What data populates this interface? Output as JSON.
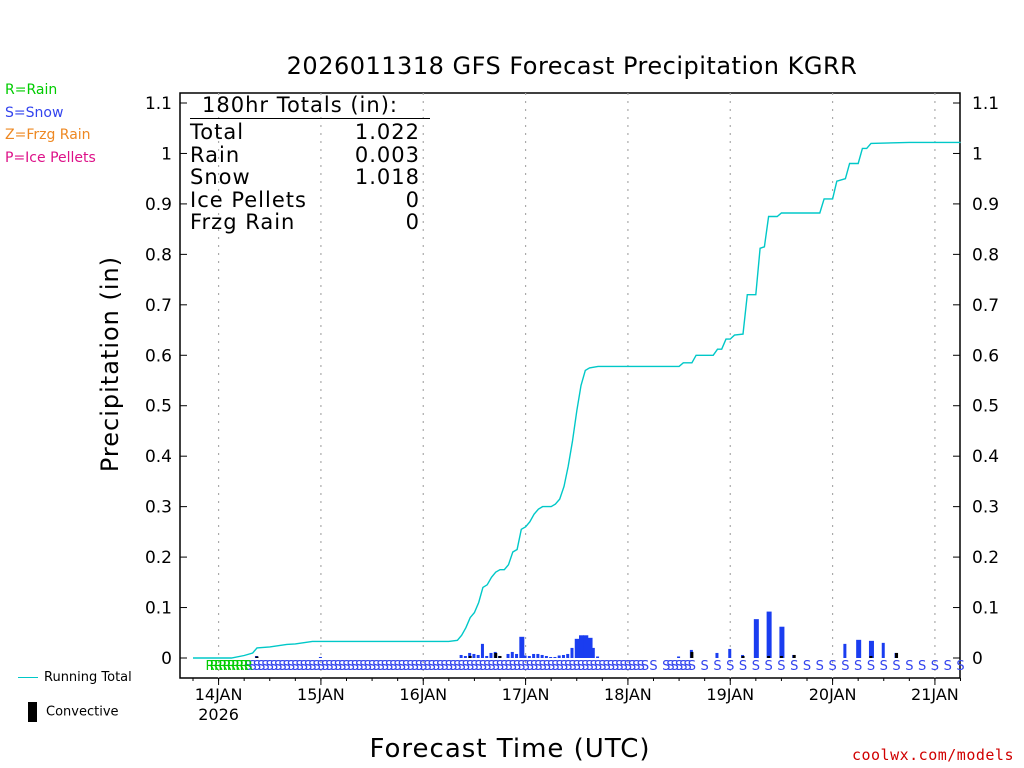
{
  "legend": {
    "rain": {
      "label": "R=Rain",
      "color": "#00cc00"
    },
    "snow": {
      "label": "S=Snow",
      "color": "#3344ee"
    },
    "frzg": {
      "label": "Z=Frzg Rain",
      "color": "#ee8822"
    },
    "ice": {
      "label": "P=Ice Pellets",
      "color": "#dd1188"
    }
  },
  "bottom_legend": {
    "running_total": "Running Total",
    "convective": "Convective"
  },
  "watermark": "coolwx.com/models",
  "totals": {
    "header": "180hr Totals (in):",
    "rows": [
      {
        "label": "Total",
        "value": "1.022"
      },
      {
        "label": "Rain",
        "value": "0.003"
      },
      {
        "label": "Snow",
        "value": "1.018"
      },
      {
        "label": "Ice Pellets",
        "value": "0"
      },
      {
        "label": "Frzg Rain",
        "value": "0"
      }
    ]
  },
  "colors": {
    "running_total": "#00c8c8",
    "bar": "#1a3df0",
    "convective": "#000000",
    "grid": "#aaaaaa"
  },
  "chart_data": {
    "type": "bar",
    "title": "2026011318 GFS Forecast Precipitation KGRR",
    "xlabel": "Forecast Time (UTC)",
    "ylabel": "Precipitation (in)",
    "ylim": [
      0,
      1.1
    ],
    "yticks": [
      "0",
      "0.1",
      "0.2",
      "0.3",
      "0.4",
      "0.5",
      "0.6",
      "0.7",
      "0.8",
      "0.9",
      "1",
      "1.1"
    ],
    "x_unit": "hours since 2026-01-13 18Z",
    "xlim": [
      0,
      180
    ],
    "xticks": [
      {
        "h": 6,
        "label": "14JAN"
      },
      {
        "h": 30,
        "label": "15JAN"
      },
      {
        "h": 54,
        "label": "16JAN"
      },
      {
        "h": 78,
        "label": "17JAN"
      },
      {
        "h": 102,
        "label": "18JAN"
      },
      {
        "h": 126,
        "label": "19JAN"
      },
      {
        "h": 150,
        "label": "20JAN"
      },
      {
        "h": 174,
        "label": "21JAN"
      }
    ],
    "xtick_sublabel": "2026",
    "running_total": [
      [
        0,
        0
      ],
      [
        9,
        0
      ],
      [
        12,
        0.005
      ],
      [
        14,
        0.01
      ],
      [
        15,
        0.02
      ],
      [
        18,
        0.022
      ],
      [
        22,
        0.027
      ],
      [
        24,
        0.028
      ],
      [
        28,
        0.033
      ],
      [
        30,
        0.033
      ],
      [
        60,
        0.033
      ],
      [
        62,
        0.035
      ],
      [
        63,
        0.045
      ],
      [
        64,
        0.06
      ],
      [
        65,
        0.08
      ],
      [
        66,
        0.09
      ],
      [
        67,
        0.11
      ],
      [
        68,
        0.14
      ],
      [
        69,
        0.145
      ],
      [
        70,
        0.16
      ],
      [
        71,
        0.17
      ],
      [
        72,
        0.175
      ],
      [
        73,
        0.175
      ],
      [
        74,
        0.185
      ],
      [
        75,
        0.21
      ],
      [
        76,
        0.215
      ],
      [
        77,
        0.255
      ],
      [
        78,
        0.26
      ],
      [
        79,
        0.27
      ],
      [
        80,
        0.285
      ],
      [
        81,
        0.295
      ],
      [
        82,
        0.3
      ],
      [
        84,
        0.3
      ],
      [
        85,
        0.305
      ],
      [
        86,
        0.315
      ],
      [
        87,
        0.34
      ],
      [
        88,
        0.38
      ],
      [
        89,
        0.43
      ],
      [
        90,
        0.49
      ],
      [
        91,
        0.54
      ],
      [
        92,
        0.57
      ],
      [
        93,
        0.575
      ],
      [
        95,
        0.578
      ],
      [
        114,
        0.578
      ],
      [
        115,
        0.585
      ],
      [
        117,
        0.585
      ],
      [
        118,
        0.6
      ],
      [
        120,
        0.6
      ],
      [
        122,
        0.6
      ],
      [
        123,
        0.612
      ],
      [
        124,
        0.612
      ],
      [
        125,
        0.632
      ],
      [
        126,
        0.632
      ],
      [
        127,
        0.64
      ],
      [
        129,
        0.642
      ],
      [
        130,
        0.72
      ],
      [
        132,
        0.72
      ],
      [
        133,
        0.812
      ],
      [
        134,
        0.815
      ],
      [
        135,
        0.875
      ],
      [
        137,
        0.875
      ],
      [
        138,
        0.882
      ],
      [
        147,
        0.882
      ],
      [
        148,
        0.91
      ],
      [
        150,
        0.91
      ],
      [
        151,
        0.945
      ],
      [
        153,
        0.95
      ],
      [
        154,
        0.98
      ],
      [
        156,
        0.98
      ],
      [
        157,
        1.01
      ],
      [
        158,
        1.01
      ],
      [
        159,
        1.02
      ],
      [
        168,
        1.022
      ],
      [
        180,
        1.022
      ]
    ],
    "precip_bars": [
      [
        15,
        0.004
      ],
      [
        30,
        0.002
      ],
      [
        63,
        0.006
      ],
      [
        64,
        0.004
      ],
      [
        65,
        0.01
      ],
      [
        66,
        0.008
      ],
      [
        67,
        0.006
      ],
      [
        68,
        0.028
      ],
      [
        69,
        0.004
      ],
      [
        70,
        0.01
      ],
      [
        71,
        0.012
      ],
      [
        72,
        0.004
      ],
      [
        74,
        0.008
      ],
      [
        75,
        0.012
      ],
      [
        76,
        0.008
      ],
      [
        77,
        0.042
      ],
      [
        78,
        0.005
      ],
      [
        79,
        0.004
      ],
      [
        80,
        0.008
      ],
      [
        81,
        0.008
      ],
      [
        82,
        0.006
      ],
      [
        83,
        0.004
      ],
      [
        84,
        0.002
      ],
      [
        85,
        0.002
      ],
      [
        86,
        0.005
      ],
      [
        87,
        0.006
      ],
      [
        88,
        0.008
      ],
      [
        89,
        0.02
      ],
      [
        90,
        0.038
      ],
      [
        91,
        0.045
      ],
      [
        92,
        0.045
      ],
      [
        93,
        0.04
      ],
      [
        94,
        0.02
      ],
      [
        95,
        0.003
      ],
      [
        114,
        0.003
      ],
      [
        117,
        0.016
      ],
      [
        123,
        0.01
      ],
      [
        126,
        0.018
      ],
      [
        129,
        0.006
      ],
      [
        132,
        0.077
      ],
      [
        135,
        0.092
      ],
      [
        138,
        0.062
      ],
      [
        141,
        0.006
      ],
      [
        153,
        0.028
      ],
      [
        156,
        0.036
      ],
      [
        159,
        0.034
      ],
      [
        162,
        0.03
      ],
      [
        165,
        0.01
      ]
    ],
    "convective_bars": [
      [
        15,
        0.003
      ],
      [
        65,
        0.004
      ],
      [
        71,
        0.01
      ],
      [
        72,
        0.004
      ],
      [
        117,
        0.012
      ],
      [
        129,
        0.004
      ],
      [
        135,
        0.004
      ],
      [
        138,
        0.004
      ],
      [
        141,
        0.006
      ],
      [
        159,
        0.004
      ],
      [
        165,
        0.01
      ]
    ],
    "ptype_markers": {
      "rain": {
        "symbol": "R",
        "hours": [
          4,
          5,
          6,
          7,
          8,
          9,
          10,
          11,
          12,
          13
        ]
      },
      "snow": {
        "symbol": "S",
        "hours": [
          13,
          14,
          15,
          16,
          17,
          18,
          19,
          20,
          21,
          22,
          23,
          24,
          25,
          26,
          27,
          28,
          29,
          30,
          31,
          32,
          33,
          34,
          35,
          36,
          37,
          38,
          39,
          40,
          41,
          42,
          43,
          44,
          45,
          46,
          47,
          48,
          49,
          50,
          51,
          52,
          53,
          54,
          55,
          56,
          57,
          58,
          59,
          60,
          61,
          62,
          63,
          64,
          65,
          66,
          67,
          68,
          69,
          70,
          71,
          72,
          73,
          74,
          75,
          76,
          77,
          78,
          79,
          80,
          81,
          82,
          83,
          84,
          85,
          86,
          87,
          88,
          89,
          90,
          91,
          92,
          93,
          94,
          95,
          96,
          97,
          98,
          99,
          100,
          101,
          102,
          103,
          104,
          105,
          106,
          108,
          111,
          112,
          113,
          114,
          115,
          116,
          117,
          120,
          123,
          126,
          129,
          132,
          135,
          138,
          141,
          144,
          147,
          150,
          153,
          156,
          159,
          162,
          165,
          168,
          171,
          174,
          177,
          180
        ]
      }
    }
  }
}
